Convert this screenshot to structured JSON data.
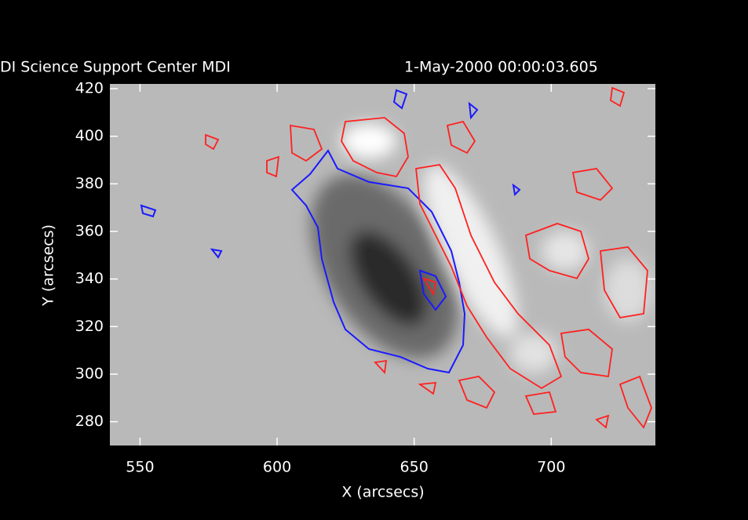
{
  "chart_data": {
    "type": "magnetogram",
    "title": "DI Science Support Center MDI",
    "subtitle": "1-May-2000 00:00:03.605",
    "xlabel": "X (arcsecs)",
    "ylabel": "Y (arcsecs)",
    "xlim": [
      539,
      738
    ],
    "ylim": [
      270,
      422
    ],
    "xticks": [
      550,
      600,
      650,
      700
    ],
    "yticks": [
      280,
      300,
      320,
      340,
      360,
      380,
      400,
      420
    ]
  }
}
